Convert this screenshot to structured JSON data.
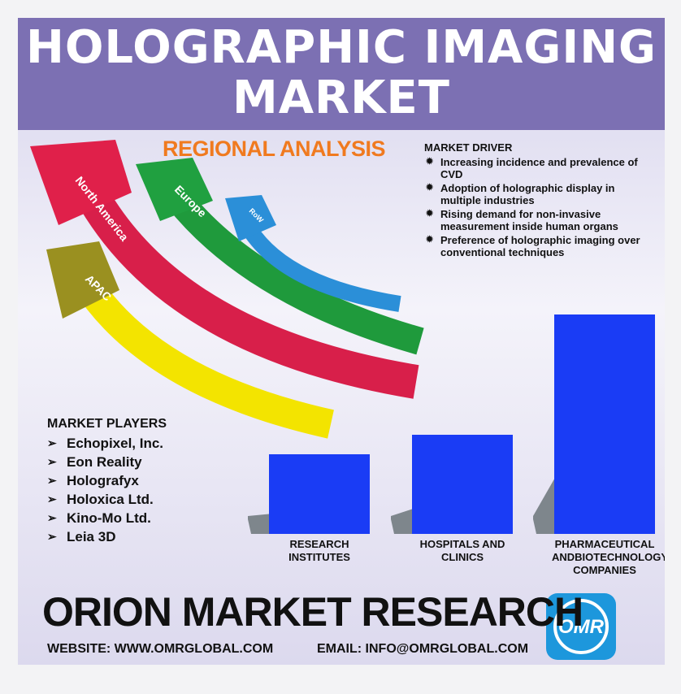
{
  "header": {
    "title": [
      "HOLOGRAPHIC IMAGING",
      "MARKET"
    ]
  },
  "regional": {
    "title": "REGIONAL ANALYSIS",
    "regions": [
      "North America",
      "Europe",
      "RoW",
      "APAC"
    ]
  },
  "drivers": {
    "title": "MARKET DRIVER",
    "items": [
      "Increasing incidence and prevalence of CVD",
      "Adoption of holographic display in multiple industries",
      "Rising demand for non-invasive measurement inside human organs",
      "Preference of holographic imaging over conventional techniques"
    ]
  },
  "players": {
    "title": "MARKET PLAYERS",
    "items": [
      "Echopixel, Inc.",
      "Eon Reality",
      "Holografyx",
      "Holoxica Ltd.",
      "Kino-Mo Ltd.",
      "Leia 3D"
    ]
  },
  "chart_data": {
    "type": "bar",
    "categories": [
      "RESEARCH INSTITUTES",
      "HOSPITALS AND CLINICS",
      "PHARMACEUTICAL ANDBIOTECHNOLOGY COMPANIES"
    ],
    "values": [
      98,
      122,
      270
    ],
    "ylim": [
      0,
      280
    ],
    "color": "#1a3cf5"
  },
  "footer": {
    "brand": "ORION MARKET RESEARCH",
    "website": "WEBSITE: WWW.OMRGLOBAL.COM",
    "email": "EMAIL: INFO@OMRGLOBAL.COM",
    "logo": "OMR"
  }
}
